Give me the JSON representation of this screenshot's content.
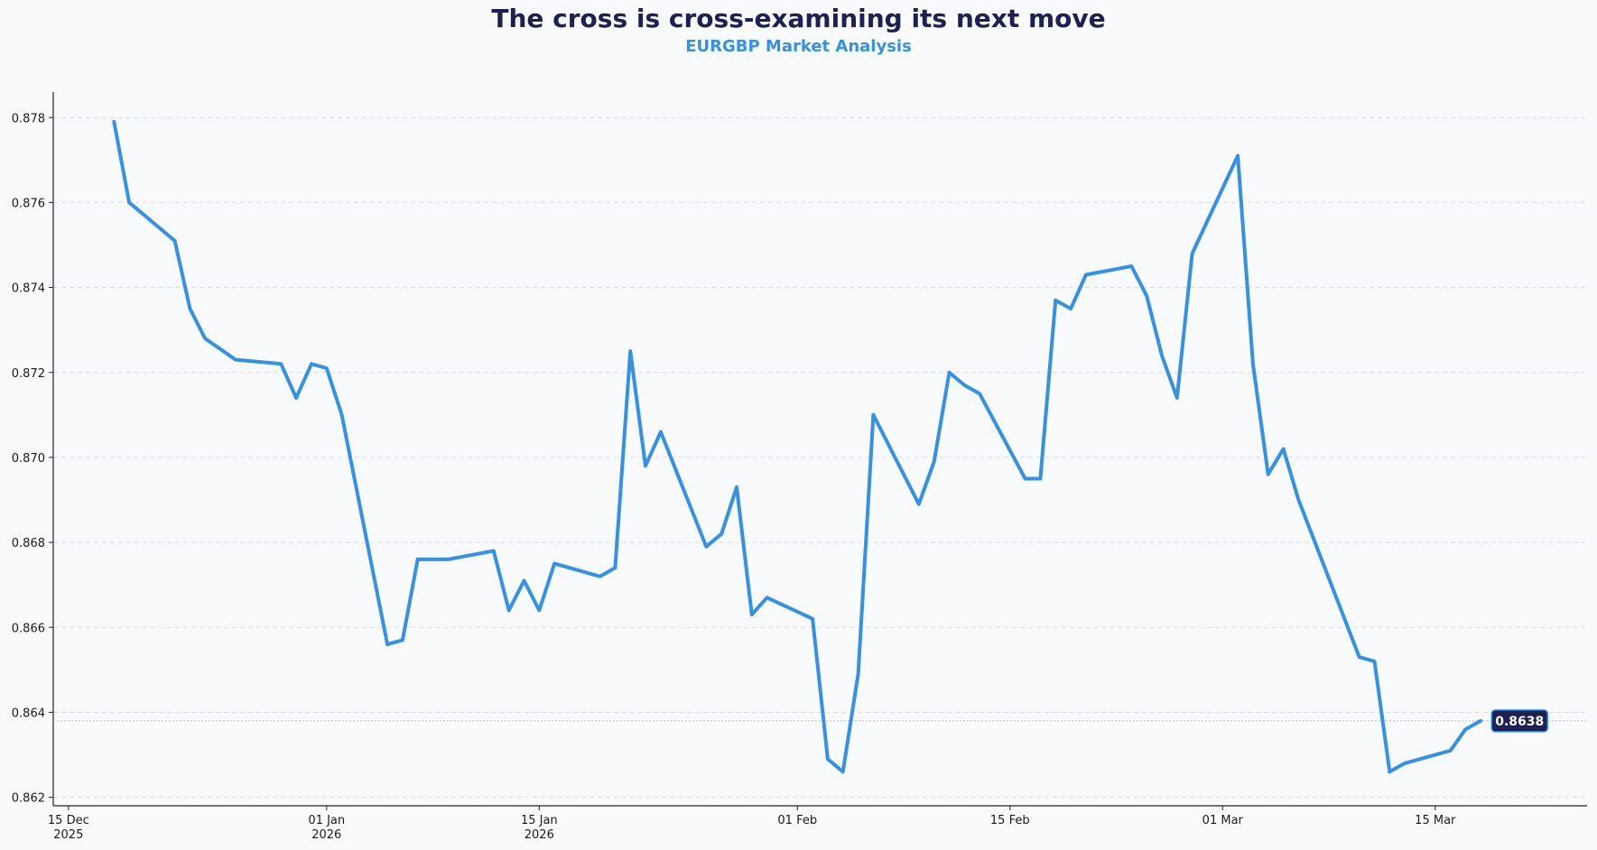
{
  "header": {
    "title": "The cross is cross-examining its next move",
    "subtitle": "EURGBP Market Analysis"
  },
  "colors": {
    "line": "#3491e3",
    "title": "#1e2051",
    "subtitle": "#3491e3",
    "grid": "#d8dde3",
    "badge_bg": "#1e2051",
    "badge_border": "#3491e3",
    "background": "#f8fafc"
  },
  "chart_data": {
    "type": "line",
    "title": "The cross is cross-examining its next move",
    "subtitle": "EURGBP Market Analysis",
    "xlabel": "",
    "ylabel": "",
    "xlim": [
      "2025-12-14",
      "2026-03-25"
    ],
    "ylim": [
      0.8618,
      0.8786
    ],
    "grid": "horizontal-dashed",
    "y_ticks": [
      "0.862",
      "0.864",
      "0.866",
      "0.868",
      "0.870",
      "0.872",
      "0.874",
      "0.876",
      "0.878"
    ],
    "x_ticks": [
      {
        "date": "2025-12-15",
        "label": "15 Dec",
        "sub": "2025"
      },
      {
        "date": "2026-01-01",
        "label": "01 Jan",
        "sub": "2026"
      },
      {
        "date": "2026-01-15",
        "label": "15 Jan",
        "sub": "2026"
      },
      {
        "date": "2026-02-01",
        "label": "01 Feb",
        "sub": ""
      },
      {
        "date": "2026-02-15",
        "label": "15 Feb",
        "sub": ""
      },
      {
        "date": "2026-03-01",
        "label": "01 Mar",
        "sub": ""
      },
      {
        "date": "2026-03-15",
        "label": "15 Mar",
        "sub": ""
      }
    ],
    "last_value_label": "0.8638",
    "last_value": 0.8638,
    "series": [
      {
        "x": [
          "2025-12-18",
          "2025-12-19",
          "2025-12-22",
          "2025-12-23",
          "2025-12-24",
          "2025-12-26",
          "2025-12-29",
          "2025-12-30",
          "2025-12-31",
          "2026-01-01",
          "2026-01-02",
          "2026-01-05",
          "2026-01-06",
          "2026-01-07",
          "2026-01-08",
          "2026-01-09",
          "2026-01-12",
          "2026-01-13",
          "2026-01-14",
          "2026-01-15",
          "2026-01-16",
          "2026-01-19",
          "2026-01-20",
          "2026-01-21",
          "2026-01-22",
          "2026-01-23",
          "2026-01-26",
          "2026-01-27",
          "2026-01-28",
          "2026-01-29",
          "2026-01-30",
          "2026-02-02",
          "2026-02-03",
          "2026-02-04",
          "2026-02-05",
          "2026-02-06",
          "2026-02-09",
          "2026-02-10",
          "2026-02-11",
          "2026-02-12",
          "2026-02-13",
          "2026-02-16",
          "2026-02-17",
          "2026-02-18",
          "2026-02-19",
          "2026-02-20",
          "2026-02-23",
          "2026-02-24",
          "2026-02-25",
          "2026-02-26",
          "2026-02-27",
          "2026-03-02",
          "2026-03-03",
          "2026-03-04",
          "2026-03-05",
          "2026-03-06",
          "2026-03-10",
          "2026-03-11",
          "2026-03-12",
          "2026-03-13",
          "2026-03-16",
          "2026-03-17",
          "2026-03-18"
        ],
        "y": [
          0.8779,
          0.876,
          0.8751,
          0.8735,
          0.8728,
          0.8723,
          0.8722,
          0.8714,
          0.8722,
          0.8721,
          0.871,
          0.8656,
          0.8657,
          0.8676,
          0.8676,
          0.8676,
          0.8678,
          0.8664,
          0.8671,
          0.8664,
          0.8675,
          0.8672,
          0.8674,
          0.8725,
          0.8698,
          0.8706,
          0.8679,
          0.8682,
          0.8693,
          0.8663,
          0.8667,
          0.8662,
          0.8629,
          0.8626,
          0.8649,
          0.871,
          0.8689,
          0.8699,
          0.872,
          0.8717,
          0.8715,
          0.8695,
          0.8695,
          0.8737,
          0.8735,
          0.8743,
          0.8745,
          0.8738,
          0.8724,
          0.8714,
          0.8748,
          0.8771,
          0.8722,
          0.8696,
          0.8702,
          0.869,
          0.8653,
          0.8652,
          0.8626,
          0.8628,
          0.8631,
          0.8636,
          0.8638
        ]
      }
    ]
  }
}
